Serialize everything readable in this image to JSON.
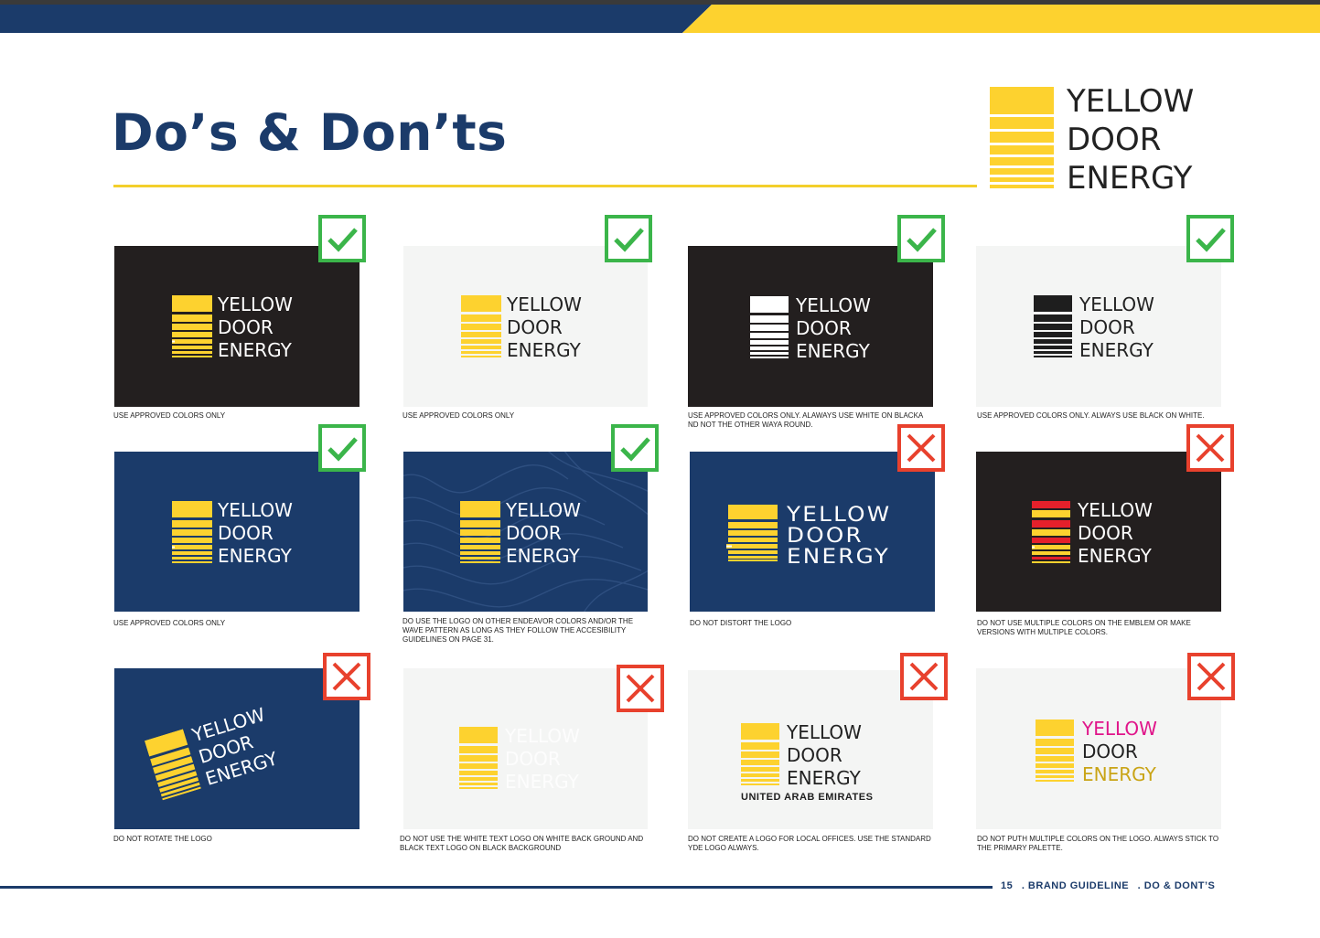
{
  "page": {
    "title": "Do’s & Don’ts"
  },
  "brand_logo": {
    "lines": [
      "YELLOW",
      "DOOR",
      "ENERGY"
    ]
  },
  "colors": {
    "navy": "#1b3b6a",
    "yellow": "#fdd22f",
    "black_panel": "#231f1f",
    "light_panel": "#f4f5f4",
    "check_green": "#3bb54a",
    "cross_red": "#e8412d",
    "magenta": "#e0168a",
    "mustard": "#c9a416"
  },
  "cards": [
    {
      "verdict": "do",
      "badge_icon": "check-icon",
      "panel": "black",
      "logo_lines": [
        "YELLOW",
        "DOOR",
        "ENERGY"
      ],
      "caption": "USE APPROVED COLORS ONLY"
    },
    {
      "verdict": "do",
      "badge_icon": "check-icon",
      "panel": "light",
      "logo_lines": [
        "YELLOW",
        "DOOR",
        "ENERGY"
      ],
      "caption": "USE APPROVED COLORS ONLY"
    },
    {
      "verdict": "do",
      "badge_icon": "check-icon",
      "panel": "black",
      "logo_lines": [
        "YELLOW",
        "DOOR",
        "ENERGY"
      ],
      "caption": "USE APPROVED COLORS ONLY. ALAWAYS USE WHITE ON BLACKA ND NOT THE OTHER WAYA ROUND."
    },
    {
      "verdict": "do",
      "badge_icon": "check-icon",
      "panel": "light",
      "logo_lines": [
        "YELLOW",
        "DOOR",
        "ENERGY"
      ],
      "caption": "USE APPROVED COLORS ONLY. ALWAYS USE BLACK ON WHITE."
    },
    {
      "verdict": "do",
      "badge_icon": "check-icon",
      "panel": "navy",
      "logo_lines": [
        "YELLOW",
        "DOOR",
        "ENERGY"
      ],
      "caption": "USE APPROVED COLORS ONLY"
    },
    {
      "verdict": "do",
      "badge_icon": "check-icon",
      "panel": "navy-wave",
      "logo_lines": [
        "YELLOW",
        "DOOR",
        "ENERGY"
      ],
      "caption": "DO USE THE LOGO ON OTHER ENDEAVOR COLORS AND/OR THE WAVE PATTERN AS LONG AS THEY FOLLOW THE ACCESIBILITY GUIDELINES ON PAGE 31."
    },
    {
      "verdict": "dont",
      "badge_icon": "cross-icon",
      "panel": "navy",
      "logo_lines": [
        "YELLOW",
        "DOOR",
        "ENERGY"
      ],
      "caption": "DO NOT DISTORT THE LOGO"
    },
    {
      "verdict": "dont",
      "badge_icon": "cross-icon",
      "panel": "black",
      "logo_lines": [
        "YELLOW",
        "DOOR",
        "ENERGY"
      ],
      "caption": "DO NOT USE MULTIPLE COLORS ON THE EMBLEM OR MAKE VERSIONS WITH MULTIPLE COLORS."
    },
    {
      "verdict": "dont",
      "badge_icon": "cross-icon",
      "panel": "navy",
      "logo_lines": [
        "YELLOW",
        "DOOR",
        "ENERGY"
      ],
      "caption": "DO NOT ROTATE THE LOGO"
    },
    {
      "verdict": "dont",
      "badge_icon": "cross-icon",
      "panel": "light",
      "logo_lines": [
        "YELLOW",
        "DOOR",
        "ENERGY"
      ],
      "caption": "DO NOT USE THE WHITE TEXT LOGO ON WHITE BACK GROUND AND BLACK TEXT LOGO ON BLACK BACKGROUND"
    },
    {
      "verdict": "dont",
      "badge_icon": "cross-icon",
      "panel": "light",
      "logo_lines": [
        "YELLOW",
        "DOOR",
        "ENERGY"
      ],
      "sub_label": "UNITED ARAB EMIRATES",
      "caption": "DO NOT CREATE A LOGO FOR LOCAL OFFICES. USE THE STANDARD YDE LOGO ALWAYS."
    },
    {
      "verdict": "dont",
      "badge_icon": "cross-icon",
      "panel": "light",
      "logo_lines": [
        "YELLOW",
        "DOOR",
        "ENERGY"
      ],
      "caption": "DO NOT PUTH MULTIPLE COLORS ON THE LOGO. ALWAYS STICK TO THE PRIMARY PALETTE."
    }
  ],
  "footer": {
    "page_number": "15",
    "section": ". BRAND GUIDELINE",
    "subsection": ". DO & DONT’S"
  }
}
